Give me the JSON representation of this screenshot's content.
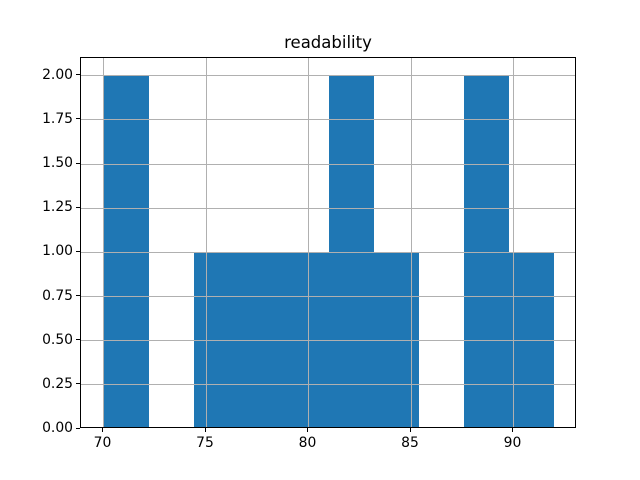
{
  "figure": {
    "background": "#ffffff"
  },
  "chart_data": {
    "type": "bar",
    "subtype": "histogram",
    "title": "readability",
    "xlabel": "",
    "ylabel": "",
    "bin_edges": [
      70.0,
      72.2,
      74.4,
      76.6,
      78.8,
      81.0,
      83.2,
      85.4,
      87.6,
      89.8,
      92.0
    ],
    "counts": [
      2,
      0,
      1,
      1,
      1,
      2,
      1,
      0,
      2,
      1
    ],
    "xlim": [
      68.9,
      93.1
    ],
    "ylim": [
      0,
      2.1
    ],
    "x_ticks": [
      {
        "value": 70,
        "label": "70"
      },
      {
        "value": 75,
        "label": "75"
      },
      {
        "value": 80,
        "label": "80"
      },
      {
        "value": 85,
        "label": "85"
      },
      {
        "value": 90,
        "label": "90"
      }
    ],
    "y_ticks": [
      {
        "value": 0.0,
        "label": "0.00"
      },
      {
        "value": 0.25,
        "label": "0.25"
      },
      {
        "value": 0.5,
        "label": "0.50"
      },
      {
        "value": 0.75,
        "label": "0.75"
      },
      {
        "value": 1.0,
        "label": "1.00"
      },
      {
        "value": 1.25,
        "label": "1.25"
      },
      {
        "value": 1.5,
        "label": "1.50"
      },
      {
        "value": 1.75,
        "label": "1.75"
      },
      {
        "value": 2.0,
        "label": "2.00"
      }
    ],
    "grid": true,
    "grid_above_bars": true,
    "legend_position": "none",
    "bar_color": "#1f77b4",
    "grid_color": "#b0b0b0",
    "spine_color": "#000000",
    "text_color": "#000000"
  }
}
